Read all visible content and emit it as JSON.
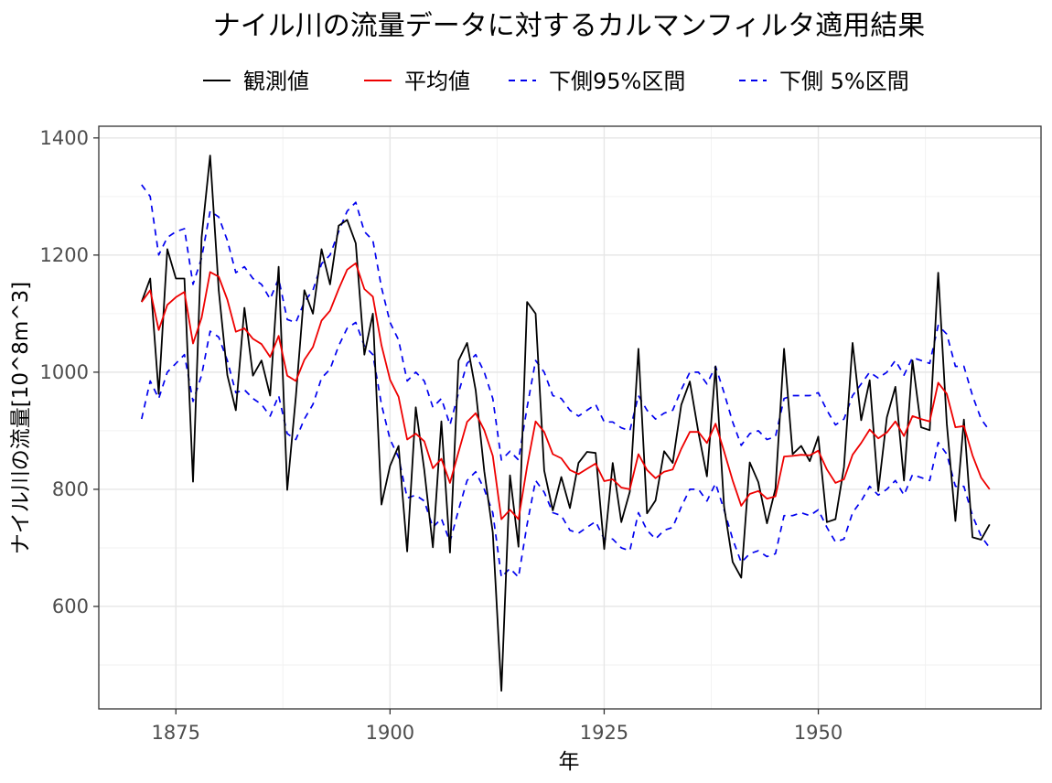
{
  "chart_data": {
    "type": "line",
    "title": "ナイル川の流量データに対するカルマンフィルタ適用結果",
    "xlabel": "年",
    "ylabel": "ナイル川の流量[10^8m^3]",
    "xlim": [
      1866,
      1976
    ],
    "ylim": [
      425,
      1420
    ],
    "xticks": [
      1875,
      1900,
      1925,
      1950
    ],
    "yticks": [
      600,
      800,
      1000,
      1200,
      1400
    ],
    "grid": true,
    "legend_position": "top",
    "x_start": 1871,
    "series": [
      {
        "name": "観測値",
        "color": "#000000",
        "dash": "none",
        "values": [
          1120,
          1160,
          963,
          1210,
          1160,
          1160,
          813,
          1230,
          1370,
          1140,
          995,
          935,
          1110,
          994,
          1020,
          960,
          1180,
          799,
          958,
          1140,
          1100,
          1210,
          1150,
          1250,
          1260,
          1220,
          1030,
          1100,
          774,
          840,
          874,
          694,
          940,
          833,
          701,
          916,
          692,
          1020,
          1050,
          969,
          831,
          726,
          456,
          824,
          702,
          1120,
          1100,
          832,
          764,
          821,
          768,
          845,
          864,
          862,
          698,
          845,
          744,
          796,
          1040,
          759,
          781,
          865,
          845,
          944,
          984,
          897,
          822,
          1010,
          771,
          676,
          649,
          846,
          812,
          742,
          801,
          1040,
          860,
          874,
          848,
          890,
          744,
          749,
          838,
          1050,
          918,
          986,
          797,
          923,
          975,
          815,
          1020,
          906,
          901,
          1170,
          912,
          746,
          919,
          718,
          714,
          740
        ]
      },
      {
        "name": "平均値",
        "color": "#ee0000",
        "dash": "none",
        "values": [
          1120,
          1140,
          1072,
          1115,
          1128,
          1137,
          1049,
          1093,
          1171,
          1163,
          1124,
          1069,
          1075,
          1057,
          1048,
          1026,
          1062,
          994,
          985,
          1021,
          1043,
          1088,
          1105,
          1142,
          1175,
          1186,
          1142,
          1129,
          1046,
          987,
          958,
          885,
          895,
          882,
          836,
          852,
          811,
          864,
          915,
          930,
          901,
          857,
          749,
          765,
          749,
          839,
          916,
          898,
          860,
          853,
          833,
          826,
          835,
          844,
          814,
          817,
          803,
          800,
          860,
          833,
          819,
          830,
          834,
          869,
          898,
          898,
          879,
          912,
          865,
          815,
          772,
          792,
          797,
          784,
          788,
          856,
          857,
          859,
          858,
          866,
          834,
          811,
          817,
          859,
          879,
          902,
          887,
          897,
          916,
          891,
          925,
          920,
          916,
          982,
          963,
          906,
          908,
          858,
          820,
          800
        ]
      },
      {
        "name": "下側95%区間",
        "color": "#0000ee",
        "dash": "7 6",
        "values": [
          1320,
          1300,
          1200,
          1230,
          1240,
          1245,
          1150,
          1195,
          1275,
          1265,
          1225,
          1170,
          1180,
          1160,
          1150,
          1125,
          1160,
          1090,
          1085,
          1120,
          1140,
          1185,
          1200,
          1240,
          1275,
          1290,
          1240,
          1225,
          1145,
          1085,
          1055,
          985,
          1000,
          985,
          940,
          955,
          910,
          965,
          1015,
          1030,
          1000,
          955,
          850,
          865,
          850,
          940,
          1020,
          1000,
          960,
          955,
          935,
          925,
          935,
          945,
          915,
          915,
          905,
          900,
          960,
          935,
          920,
          930,
          935,
          970,
          1000,
          1000,
          980,
          1010,
          965,
          915,
          875,
          895,
          900,
          885,
          890,
          955,
          960,
          960,
          960,
          965,
          935,
          910,
          920,
          960,
          980,
          1000,
          990,
          1000,
          1020,
          995,
          1025,
          1020,
          1015,
          1080,
          1065,
          1010,
          1010,
          960,
          920,
          900
        ]
      },
      {
        "name": "下側 5%区間",
        "color": "#0000ee",
        "dash": "7 6",
        "values": [
          920,
          985,
          955,
          1000,
          1015,
          1030,
          950,
          995,
          1070,
          1060,
          1020,
          965,
          970,
          955,
          945,
          925,
          960,
          895,
          885,
          920,
          945,
          990,
          1005,
          1045,
          1075,
          1085,
          1045,
          1030,
          945,
          885,
          855,
          785,
          790,
          780,
          735,
          750,
          710,
          765,
          815,
          830,
          800,
          760,
          650,
          665,
          650,
          740,
          815,
          795,
          760,
          755,
          730,
          725,
          735,
          745,
          715,
          715,
          700,
          695,
          760,
          730,
          715,
          730,
          735,
          770,
          800,
          800,
          780,
          810,
          765,
          715,
          675,
          690,
          695,
          685,
          690,
          755,
          755,
          760,
          755,
          765,
          735,
          710,
          715,
          760,
          780,
          805,
          790,
          800,
          815,
          790,
          825,
          820,
          815,
          880,
          860,
          805,
          805,
          755,
          720,
          700
        ]
      }
    ]
  }
}
